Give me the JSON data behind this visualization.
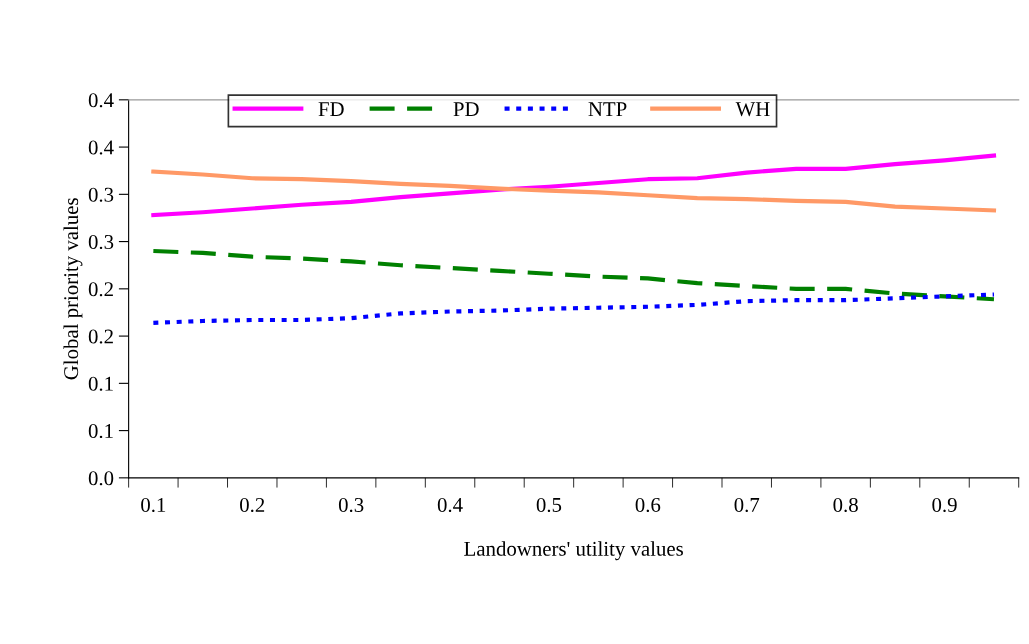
{
  "chart_data": {
    "type": "line",
    "xlabel": "Landowners' utility values",
    "ylabel": "Global priority values",
    "categories": [
      "0.1",
      null,
      "0.2",
      null,
      "0.3",
      null,
      "0.4",
      null,
      "0.5",
      null,
      "0.6",
      null,
      "0.7",
      null,
      "0.8",
      null,
      "0.9",
      null
    ],
    "series": [
      {
        "name": "FD",
        "color": "#ff00ff",
        "line_style": "solid",
        "values": [
          0.278,
          0.281,
          0.285,
          0.289,
          0.292,
          0.297,
          0.301,
          0.305,
          0.308,
          0.312,
          0.316,
          0.317,
          0.323,
          0.327,
          0.327,
          0.332,
          0.336,
          0.341
        ]
      },
      {
        "name": "PD",
        "color": "#008000",
        "line_style": "dashed",
        "values": [
          0.24,
          0.238,
          0.234,
          0.232,
          0.229,
          0.225,
          0.222,
          0.219,
          0.216,
          0.213,
          0.211,
          0.206,
          0.203,
          0.2,
          0.2,
          0.195,
          0.192,
          0.189
        ]
      },
      {
        "name": "NTP",
        "color": "#0000ff",
        "line_style": "dotted",
        "values": [
          0.164,
          0.166,
          0.167,
          0.167,
          0.169,
          0.174,
          0.176,
          0.177,
          0.179,
          0.18,
          0.181,
          0.183,
          0.187,
          0.188,
          0.188,
          0.19,
          0.192,
          0.194
        ]
      },
      {
        "name": "WH",
        "color": "#ff9966",
        "line_style": "solid",
        "values": [
          0.324,
          0.321,
          0.317,
          0.316,
          0.314,
          0.311,
          0.309,
          0.306,
          0.304,
          0.302,
          0.299,
          0.296,
          0.295,
          0.293,
          0.292,
          0.287,
          0.285,
          0.283
        ]
      }
    ],
    "ylim": [
      0,
      0.4
    ],
    "yticks": [
      {
        "value": 0,
        "label": "0.0"
      },
      {
        "value": 0.05,
        "label": "0.1"
      },
      {
        "value": 0.1,
        "label": "0.1"
      },
      {
        "value": 0.15,
        "label": "0.2"
      },
      {
        "value": 0.2,
        "label": "0.2"
      },
      {
        "value": 0.25,
        "label": "0.3"
      },
      {
        "value": 0.3,
        "label": "0.3"
      },
      {
        "value": 0.35,
        "label": "0.4"
      },
      {
        "value": 0.4,
        "label": "0.4"
      }
    ],
    "legend": "top",
    "grid": false,
    "marker": "none"
  }
}
